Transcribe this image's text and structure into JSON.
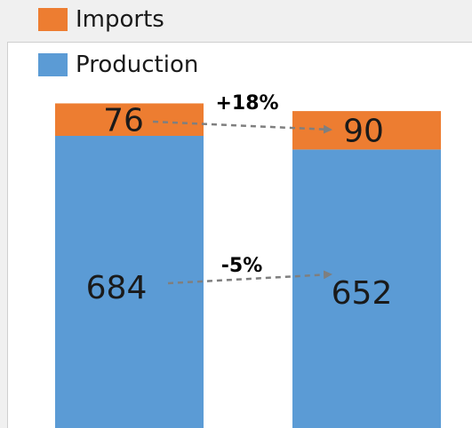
{
  "chart_data": {
    "type": "bar",
    "stacked": true,
    "categories": [
      "",
      ""
    ],
    "series": [
      {
        "name": "Production",
        "values": [
          684,
          652
        ],
        "color": "#5b9bd5"
      },
      {
        "name": "Imports",
        "values": [
          76,
          90
        ],
        "color": "#ed7d31"
      }
    ],
    "annotations": [
      {
        "series": "Imports",
        "label": "+18%"
      },
      {
        "series": "Production",
        "label": "-5%"
      }
    ],
    "grid": false,
    "legend_placement": "top-left"
  },
  "legend": {
    "imports_label": "Imports",
    "production_label": "Production"
  }
}
